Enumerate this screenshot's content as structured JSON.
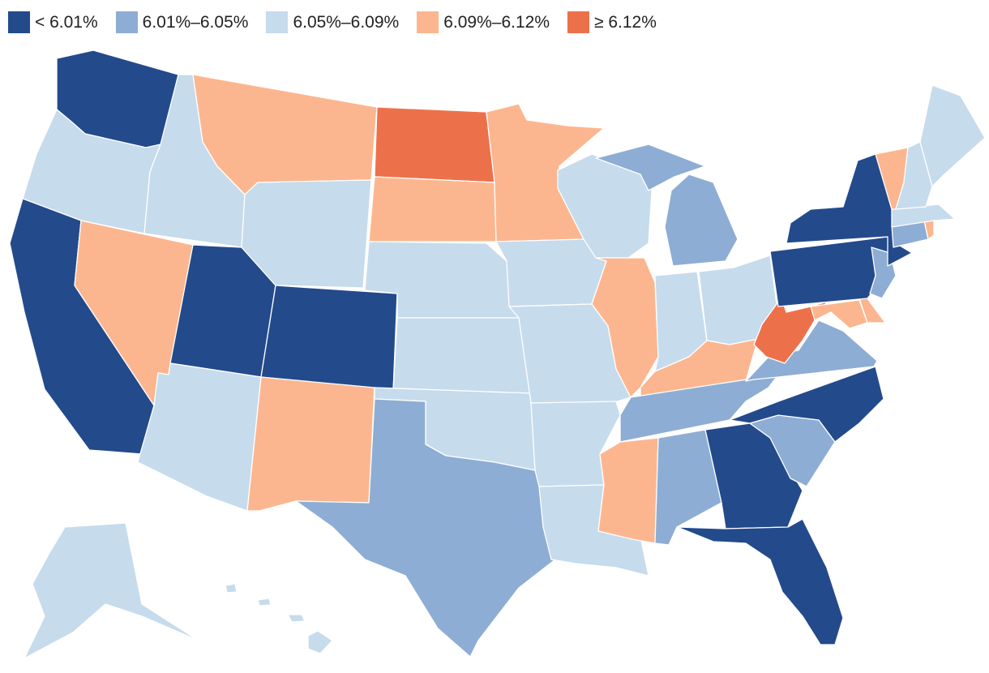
{
  "legend": {
    "items": [
      {
        "label": "< 6.01%",
        "color": "#234a8b",
        "class": "c1"
      },
      {
        "label": "6.01%–6.05%",
        "color": "#8eadd4",
        "class": "c2"
      },
      {
        "label": "6.05%–6.09%",
        "color": "#c6dbec",
        "class": "c3"
      },
      {
        "label": "6.09%–6.12%",
        "color": "#fcb68f",
        "class": "c4"
      },
      {
        "label": "≥ 6.12%",
        "color": "#ec714b",
        "class": "c5"
      }
    ]
  },
  "states": [
    {
      "name": "washington",
      "class": "c1"
    },
    {
      "name": "oregon",
      "class": "c3"
    },
    {
      "name": "california",
      "class": "c1"
    },
    {
      "name": "idaho",
      "class": "c3"
    },
    {
      "name": "nevada",
      "class": "c4"
    },
    {
      "name": "utah",
      "class": "c1"
    },
    {
      "name": "arizona",
      "class": "c3"
    },
    {
      "name": "montana",
      "class": "c4"
    },
    {
      "name": "wyoming",
      "class": "c3"
    },
    {
      "name": "colorado",
      "class": "c1"
    },
    {
      "name": "new-mexico",
      "class": "c4"
    },
    {
      "name": "north-dakota",
      "class": "c5"
    },
    {
      "name": "south-dakota",
      "class": "c4"
    },
    {
      "name": "nebraska",
      "class": "c3"
    },
    {
      "name": "kansas",
      "class": "c3"
    },
    {
      "name": "oklahoma",
      "class": "c3"
    },
    {
      "name": "texas",
      "class": "c2"
    },
    {
      "name": "minnesota",
      "class": "c4"
    },
    {
      "name": "iowa",
      "class": "c3"
    },
    {
      "name": "missouri",
      "class": "c3"
    },
    {
      "name": "arkansas",
      "class": "c3"
    },
    {
      "name": "louisiana",
      "class": "c3"
    },
    {
      "name": "wisconsin",
      "class": "c3"
    },
    {
      "name": "illinois",
      "class": "c4"
    },
    {
      "name": "michigan",
      "class": "c2"
    },
    {
      "name": "indiana",
      "class": "c3"
    },
    {
      "name": "ohio",
      "class": "c3"
    },
    {
      "name": "kentucky",
      "class": "c4"
    },
    {
      "name": "tennessee",
      "class": "c2"
    },
    {
      "name": "mississippi",
      "class": "c4"
    },
    {
      "name": "alabama",
      "class": "c2"
    },
    {
      "name": "georgia",
      "class": "c1"
    },
    {
      "name": "florida",
      "class": "c1"
    },
    {
      "name": "south-carolina",
      "class": "c2"
    },
    {
      "name": "north-carolina",
      "class": "c1"
    },
    {
      "name": "virginia",
      "class": "c2"
    },
    {
      "name": "west-virginia",
      "class": "c5"
    },
    {
      "name": "maryland",
      "class": "c4"
    },
    {
      "name": "delaware",
      "class": "c4"
    },
    {
      "name": "pennsylvania",
      "class": "c1"
    },
    {
      "name": "new-jersey",
      "class": "c2"
    },
    {
      "name": "new-york",
      "class": "c1"
    },
    {
      "name": "connecticut",
      "class": "c2"
    },
    {
      "name": "rhode-island",
      "class": "c4"
    },
    {
      "name": "massachusetts",
      "class": "c3"
    },
    {
      "name": "vermont",
      "class": "c4"
    },
    {
      "name": "new-hampshire",
      "class": "c3"
    },
    {
      "name": "maine",
      "class": "c3"
    },
    {
      "name": "alaska",
      "class": "c3"
    },
    {
      "name": "hawaii",
      "class": "c3"
    }
  ]
}
